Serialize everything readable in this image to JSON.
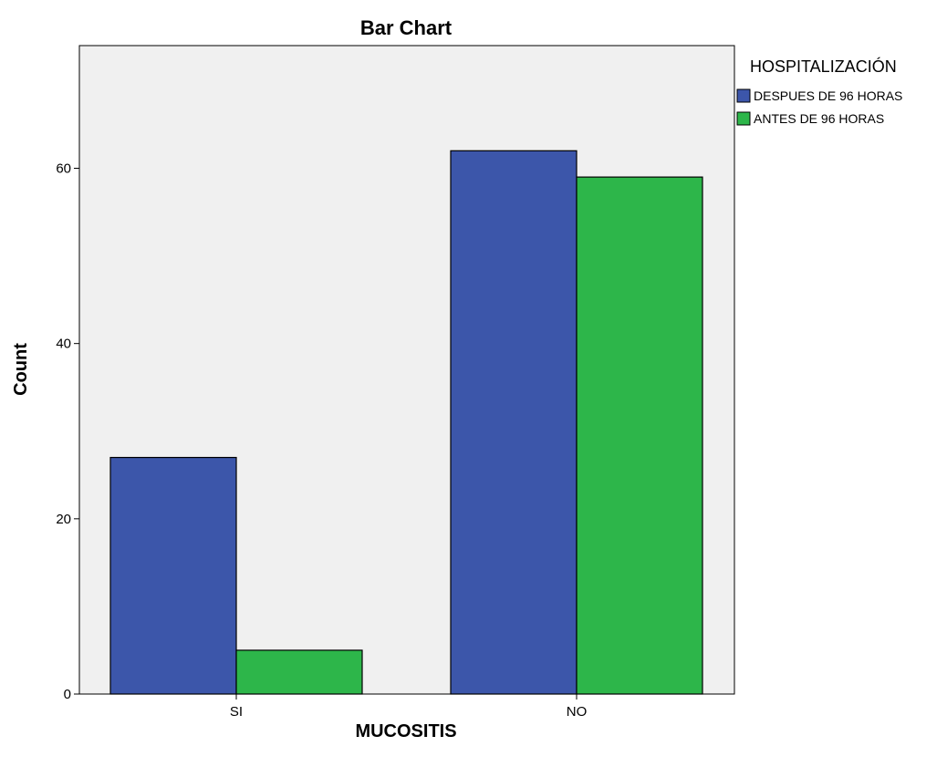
{
  "chart_data": {
    "type": "bar",
    "title": "Bar Chart",
    "xlabel": "MUCOSITIS",
    "ylabel": "Count",
    "categories": [
      "SI",
      "NO"
    ],
    "series": [
      {
        "name": "DESPUES DE 96 HORAS",
        "values": [
          27,
          62
        ],
        "color": "#3c56aa"
      },
      {
        "name": "ANTES DE 96 HORAS",
        "values": [
          5,
          59
        ],
        "color": "#2db64a"
      }
    ],
    "ylim": [
      0,
      74
    ],
    "yticks": [
      0,
      20,
      40,
      60
    ],
    "legend": {
      "title": "HOSPITALIZACIÓN",
      "position": "right"
    },
    "grid": false,
    "plot_background": "#f0f0f0"
  }
}
